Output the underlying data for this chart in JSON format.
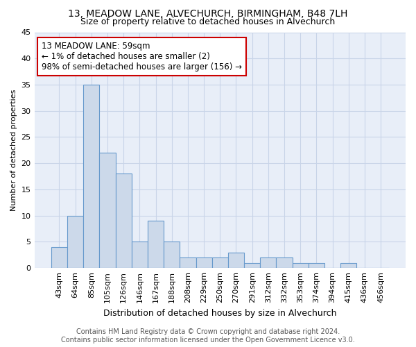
{
  "title": "13, MEADOW LANE, ALVECHURCH, BIRMINGHAM, B48 7LH",
  "subtitle": "Size of property relative to detached houses in Alvechurch",
  "xlabel": "Distribution of detached houses by size in Alvechurch",
  "ylabel": "Number of detached properties",
  "categories": [
    "43sqm",
    "64sqm",
    "85sqm",
    "105sqm",
    "126sqm",
    "146sqm",
    "167sqm",
    "188sqm",
    "208sqm",
    "229sqm",
    "250sqm",
    "270sqm",
    "291sqm",
    "312sqm",
    "332sqm",
    "353sqm",
    "374sqm",
    "394sqm",
    "415sqm",
    "436sqm",
    "456sqm"
  ],
  "values": [
    4,
    10,
    35,
    22,
    18,
    5,
    9,
    5,
    2,
    2,
    2,
    3,
    1,
    2,
    2,
    1,
    1,
    0,
    1,
    0,
    0
  ],
  "bar_color": "#ccd9ea",
  "bar_edgecolor": "#6699cc",
  "annotation_line1": "13 MEADOW LANE: 59sqm",
  "annotation_line2": "← 1% of detached houses are smaller (2)",
  "annotation_line3": "98% of semi-detached houses are larger (156) →",
  "annotation_box_edgecolor": "#cc0000",
  "annotation_box_facecolor": "#ffffff",
  "ylim": [
    0,
    45
  ],
  "yticks": [
    0,
    5,
    10,
    15,
    20,
    25,
    30,
    35,
    40,
    45
  ],
  "grid_color": "#c8d4e8",
  "background_color": "#e8eef8",
  "footer_line1": "Contains HM Land Registry data © Crown copyright and database right 2024.",
  "footer_line2": "Contains public sector information licensed under the Open Government Licence v3.0.",
  "title_fontsize": 10,
  "subtitle_fontsize": 9,
  "xlabel_fontsize": 9,
  "ylabel_fontsize": 8,
  "tick_fontsize": 8,
  "footer_fontsize": 7,
  "annotation_fontsize": 8.5
}
